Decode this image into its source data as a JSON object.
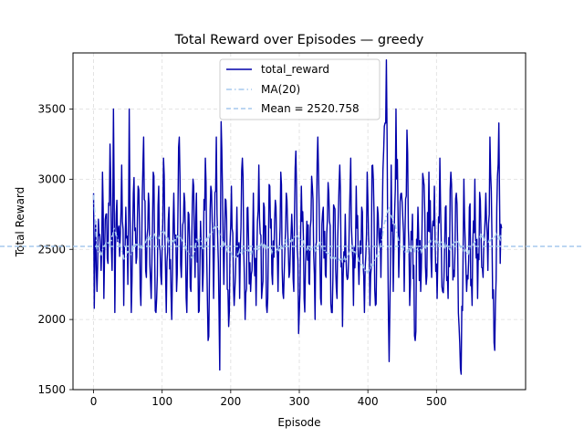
{
  "chart_data": {
    "type": "line",
    "title": "Total Reward over Episodes — greedy",
    "xlabel": "Episode",
    "ylabel": "Total Reward",
    "xlim": [
      -30,
      630
    ],
    "ylim": [
      1500,
      3900
    ],
    "xticks": [
      0,
      100,
      200,
      300,
      400,
      500
    ],
    "yticks": [
      1500,
      2000,
      2500,
      3000,
      3500
    ],
    "grid": true,
    "legend_position": "upper center",
    "colors": {
      "total_reward": "#0000aa",
      "ma": "#a6c8ee",
      "mean": "#a6c8ee"
    },
    "n_episodes": 600,
    "series": [
      {
        "name": "total_reward",
        "style": "solid",
        "anchors": [
          [
            0,
            2900
          ],
          [
            1,
            2080
          ],
          [
            3,
            2700
          ],
          [
            5,
            2200
          ],
          [
            8,
            2600
          ],
          [
            11,
            2350
          ],
          [
            13,
            3050
          ],
          [
            15,
            2150
          ],
          [
            18,
            2750
          ],
          [
            21,
            2400
          ],
          [
            24,
            3250
          ],
          [
            27,
            2350
          ],
          [
            29,
            3500
          ],
          [
            31,
            2050
          ],
          [
            34,
            2850
          ],
          [
            38,
            2450
          ],
          [
            41,
            3100
          ],
          [
            44,
            2100
          ],
          [
            47,
            2800
          ],
          [
            50,
            2250
          ],
          [
            52,
            3500
          ],
          [
            55,
            2050
          ],
          [
            58,
            2900
          ],
          [
            62,
            2400
          ],
          [
            65,
            2950
          ],
          [
            69,
            2100
          ],
          [
            73,
            3300
          ],
          [
            77,
            2300
          ],
          [
            80,
            2900
          ],
          [
            84,
            2150
          ],
          [
            87,
            3050
          ],
          [
            91,
            2050
          ],
          [
            95,
            2950
          ],
          [
            99,
            2250
          ],
          [
            102,
            3150
          ],
          [
            106,
            2050
          ],
          [
            110,
            2800
          ],
          [
            114,
            2000
          ],
          [
            117,
            2900
          ],
          [
            121,
            2200
          ],
          [
            125,
            3300
          ],
          [
            128,
            2300
          ],
          [
            132,
            2900
          ],
          [
            136,
            2050
          ],
          [
            139,
            2750
          ],
          [
            142,
            2200
          ],
          [
            145,
            3000
          ],
          [
            148,
            2300
          ],
          [
            150,
            2900
          ],
          [
            153,
            2050
          ],
          [
            156,
            2700
          ],
          [
            159,
            2200
          ],
          [
            163,
            3150
          ],
          [
            167,
            1850
          ],
          [
            171,
            2950
          ],
          [
            175,
            2150
          ],
          [
            179,
            3300
          ],
          [
            182,
            2400
          ],
          [
            184,
            1640
          ],
          [
            186,
            3410
          ],
          [
            190,
            2250
          ],
          [
            193,
            2850
          ],
          [
            197,
            1950
          ],
          [
            201,
            2950
          ],
          [
            205,
            2100
          ],
          [
            209,
            2800
          ],
          [
            213,
            2150
          ],
          [
            217,
            3150
          ],
          [
            221,
            2000
          ],
          [
            225,
            2800
          ],
          [
            229,
            2200
          ],
          [
            233,
            2900
          ],
          [
            237,
            2100
          ],
          [
            241,
            3100
          ],
          [
            245,
            2150
          ],
          [
            249,
            2800
          ],
          [
            253,
            2050
          ],
          [
            257,
            2950
          ],
          [
            261,
            2250
          ],
          [
            265,
            2850
          ],
          [
            269,
            2200
          ],
          [
            273,
            3050
          ],
          [
            277,
            2150
          ],
          [
            281,
            2900
          ],
          [
            285,
            2300
          ],
          [
            289,
            2750
          ],
          [
            292,
            2200
          ],
          [
            295,
            3200
          ],
          [
            299,
            1900
          ],
          [
            303,
            2950
          ],
          [
            307,
            2150
          ],
          [
            311,
            2700
          ],
          [
            315,
            2250
          ],
          [
            319,
            2950
          ],
          [
            323,
            2000
          ],
          [
            327,
            3300
          ],
          [
            331,
            2150
          ],
          [
            335,
            2800
          ],
          [
            339,
            2300
          ],
          [
            343,
            2900
          ],
          [
            347,
            2050
          ],
          [
            351,
            2800
          ],
          [
            355,
            2150
          ],
          [
            359,
            3100
          ],
          [
            363,
            1950
          ],
          [
            367,
            2750
          ],
          [
            371,
            2300
          ],
          [
            375,
            3150
          ],
          [
            379,
            2100
          ],
          [
            383,
            2950
          ],
          [
            387,
            2250
          ],
          [
            391,
            2800
          ],
          [
            395,
            2050
          ],
          [
            399,
            3050
          ],
          [
            403,
            2100
          ],
          [
            407,
            3100
          ],
          [
            411,
            2100
          ],
          [
            415,
            2750
          ],
          [
            419,
            2300
          ],
          [
            423,
            3200
          ],
          [
            427,
            3850
          ],
          [
            429,
            2550
          ],
          [
            431,
            1700
          ],
          [
            434,
            3100
          ],
          [
            437,
            2200
          ],
          [
            441,
            3500
          ],
          [
            445,
            2300
          ],
          [
            449,
            2900
          ],
          [
            453,
            2200
          ],
          [
            457,
            3350
          ],
          [
            461,
            2100
          ],
          [
            465,
            2750
          ],
          [
            469,
            1850
          ],
          [
            473,
            2800
          ],
          [
            477,
            2200
          ],
          [
            481,
            3000
          ],
          [
            485,
            2250
          ],
          [
            489,
            3050
          ],
          [
            493,
            2300
          ],
          [
            497,
            2950
          ],
          [
            501,
            2150
          ],
          [
            505,
            3150
          ],
          [
            509,
            2200
          ],
          [
            513,
            2800
          ],
          [
            517,
            2150
          ],
          [
            521,
            3050
          ],
          [
            525,
            2350
          ],
          [
            529,
            2900
          ],
          [
            533,
            1950
          ],
          [
            536,
            1610
          ],
          [
            540,
            3000
          ],
          [
            544,
            2200
          ],
          [
            548,
            2800
          ],
          [
            552,
            2100
          ],
          [
            556,
            3000
          ],
          [
            560,
            2150
          ],
          [
            564,
            2850
          ],
          [
            568,
            2300
          ],
          [
            572,
            2900
          ],
          [
            575,
            2350
          ],
          [
            578,
            3300
          ],
          [
            582,
            2150
          ],
          [
            585,
            1780
          ],
          [
            588,
            2800
          ],
          [
            591,
            3400
          ],
          [
            593,
            2400
          ],
          [
            595,
            2650
          ]
        ]
      },
      {
        "name": "MA(20)",
        "style": "dashdot",
        "anchors": [
          [
            0,
            2890
          ],
          [
            5,
            2500
          ],
          [
            10,
            2450
          ],
          [
            15,
            2520
          ],
          [
            20,
            2560
          ],
          [
            25,
            2540
          ],
          [
            30,
            2650
          ],
          [
            35,
            2580
          ],
          [
            40,
            2500
          ],
          [
            45,
            2430
          ],
          [
            50,
            2480
          ],
          [
            55,
            2460
          ],
          [
            60,
            2550
          ],
          [
            65,
            2530
          ],
          [
            70,
            2520
          ],
          [
            75,
            2560
          ],
          [
            80,
            2580
          ],
          [
            85,
            2570
          ],
          [
            90,
            2600
          ],
          [
            95,
            2580
          ],
          [
            100,
            2640
          ],
          [
            105,
            2600
          ],
          [
            110,
            2560
          ],
          [
            115,
            2550
          ],
          [
            120,
            2580
          ],
          [
            125,
            2590
          ],
          [
            130,
            2570
          ],
          [
            135,
            2500
          ],
          [
            140,
            2460
          ],
          [
            145,
            2440
          ],
          [
            150,
            2560
          ],
          [
            155,
            2580
          ],
          [
            160,
            2500
          ],
          [
            165,
            2560
          ],
          [
            170,
            2610
          ],
          [
            175,
            2640
          ],
          [
            180,
            2670
          ],
          [
            185,
            2590
          ],
          [
            190,
            2530
          ],
          [
            195,
            2500
          ],
          [
            200,
            2470
          ],
          [
            205,
            2450
          ],
          [
            210,
            2470
          ],
          [
            215,
            2490
          ],
          [
            220,
            2480
          ],
          [
            225,
            2500
          ],
          [
            230,
            2470
          ],
          [
            235,
            2500
          ],
          [
            240,
            2510
          ],
          [
            245,
            2530
          ],
          [
            250,
            2520
          ],
          [
            255,
            2520
          ],
          [
            260,
            2480
          ],
          [
            265,
            2480
          ],
          [
            270,
            2500
          ],
          [
            275,
            2510
          ],
          [
            280,
            2560
          ],
          [
            285,
            2570
          ],
          [
            290,
            2570
          ],
          [
            295,
            2600
          ],
          [
            300,
            2580
          ],
          [
            305,
            2560
          ],
          [
            310,
            2500
          ],
          [
            315,
            2510
          ],
          [
            320,
            2520
          ],
          [
            325,
            2480
          ],
          [
            330,
            2560
          ],
          [
            335,
            2500
          ],
          [
            340,
            2470
          ],
          [
            345,
            2460
          ],
          [
            350,
            2450
          ],
          [
            355,
            2440
          ],
          [
            360,
            2420
          ],
          [
            365,
            2430
          ],
          [
            370,
            2440
          ],
          [
            375,
            2520
          ],
          [
            380,
            2480
          ],
          [
            385,
            2440
          ],
          [
            390,
            2400
          ],
          [
            395,
            2360
          ],
          [
            400,
            2340
          ],
          [
            405,
            2380
          ],
          [
            410,
            2420
          ],
          [
            415,
            2460
          ],
          [
            420,
            2560
          ],
          [
            425,
            2700
          ],
          [
            430,
            2790
          ],
          [
            435,
            2740
          ],
          [
            440,
            2660
          ],
          [
            445,
            2570
          ],
          [
            450,
            2520
          ],
          [
            455,
            2480
          ],
          [
            460,
            2500
          ],
          [
            465,
            2500
          ],
          [
            470,
            2490
          ],
          [
            475,
            2480
          ],
          [
            480,
            2510
          ],
          [
            485,
            2520
          ],
          [
            490,
            2550
          ],
          [
            495,
            2560
          ],
          [
            500,
            2550
          ],
          [
            505,
            2540
          ],
          [
            510,
            2530
          ],
          [
            515,
            2530
          ],
          [
            520,
            2510
          ],
          [
            525,
            2540
          ],
          [
            530,
            2560
          ],
          [
            535,
            2520
          ],
          [
            540,
            2500
          ],
          [
            545,
            2480
          ],
          [
            550,
            2500
          ],
          [
            555,
            2540
          ],
          [
            560,
            2580
          ],
          [
            565,
            2600
          ],
          [
            570,
            2570
          ],
          [
            575,
            2550
          ],
          [
            580,
            2560
          ],
          [
            585,
            2600
          ],
          [
            590,
            2590
          ],
          [
            595,
            2580
          ]
        ]
      },
      {
        "name": "Mean = 2520.758",
        "style": "dashed",
        "value": 2520.758
      }
    ]
  }
}
